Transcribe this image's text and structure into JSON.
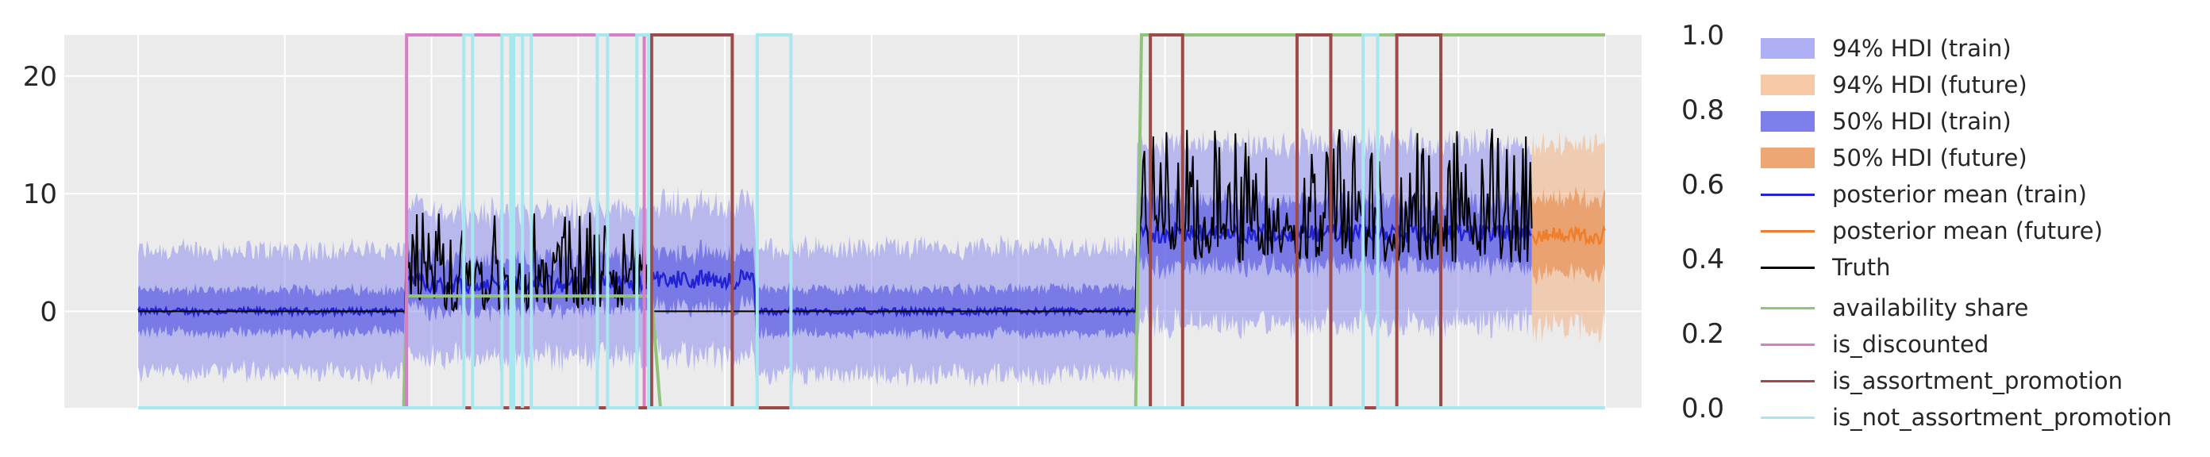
{
  "chart_data": {
    "type": "line",
    "x": {
      "start": 0,
      "end": 1000,
      "ticks_labelled": false
    },
    "y_left": {
      "lim": [
        -8.2,
        23.5
      ],
      "ticks": [
        0,
        10,
        20
      ],
      "tick_labels": [
        "0",
        "10",
        "20"
      ]
    },
    "y_right": {
      "lim": [
        0.0,
        1.0
      ],
      "ticks": [
        0.0,
        0.2,
        0.4,
        0.6,
        0.8,
        1.0
      ],
      "tick_labels": [
        "0.0",
        "0.2",
        "0.4",
        "0.6",
        "0.8",
        "1.0"
      ]
    },
    "grid": true,
    "legend_position": "outside-right",
    "background": "#ebebeb",
    "train_end": 950,
    "series": [
      {
        "name": "94% HDI (train)",
        "kind": "band",
        "color": "#7b7bf0",
        "opacity": 0.45
      },
      {
        "name": "94% HDI (future)",
        "kind": "band",
        "color": "#f2a46a",
        "opacity": 0.45
      },
      {
        "name": "50% HDI (train)",
        "kind": "band",
        "color": "#3b3be0",
        "opacity": 0.5
      },
      {
        "name": "50% HDI (future)",
        "kind": "band",
        "color": "#e8823a",
        "opacity": 0.55
      },
      {
        "name": "posterior mean (train)",
        "kind": "line",
        "color": "#2323d6"
      },
      {
        "name": "posterior mean (future)",
        "kind": "line",
        "color": "#f07d2a"
      },
      {
        "name": "Truth",
        "kind": "line",
        "color": "#000000"
      },
      {
        "name": "availability share",
        "kind": "line",
        "axis": "right",
        "color": "#8fc47a",
        "segments": [
          [
            0,
            0.0
          ],
          [
            181,
            0.0
          ],
          [
            183,
            0.3
          ],
          [
            350,
            0.3
          ],
          [
            356,
            0.0
          ],
          [
            680,
            0.0
          ],
          [
            684,
            1.0
          ],
          [
            1000,
            1.0
          ]
        ]
      },
      {
        "name": "is_discounted",
        "kind": "step",
        "axis": "right",
        "color": "#d67fc4",
        "on_intervals": [
          [
            183,
            345
          ]
        ]
      },
      {
        "name": "is_assortment_promotion",
        "kind": "step",
        "axis": "right",
        "color": "#9c4a4a",
        "on_intervals": [
          [
            350,
            405
          ],
          [
            690,
            712
          ],
          [
            790,
            813
          ],
          [
            858,
            888
          ]
        ]
      },
      {
        "name": "is_not_assortment_promotion",
        "kind": "step",
        "axis": "right",
        "color": "#a8e6f0",
        "on_intervals": [
          [
            222,
            228
          ],
          [
            248,
            254
          ],
          [
            256,
            262
          ],
          [
            262,
            268
          ],
          [
            313,
            320
          ],
          [
            340,
            348
          ],
          [
            422,
            445
          ],
          [
            835,
            845
          ]
        ]
      }
    ],
    "regimes": [
      {
        "x": [
          0,
          182
        ],
        "mean": 0.0,
        "band94": 5.2,
        "band50": 1.8,
        "truth": 0.0
      },
      {
        "x": [
          182,
          350
        ],
        "mean": 2.3,
        "band94": 6.2,
        "band50": 2.2,
        "truth": 2.5
      },
      {
        "x": [
          350,
          420
        ],
        "mean": 2.7,
        "band94": 6.4,
        "band50": 2.3,
        "truth": 0.0
      },
      {
        "x": [
          420,
          680
        ],
        "mean": 0.0,
        "band94": 5.4,
        "band50": 1.9,
        "truth": 0.0
      },
      {
        "x": [
          680,
          950
        ],
        "mean": 6.6,
        "band94": 7.6,
        "band50": 2.8,
        "truth": 6.6
      },
      {
        "x": [
          950,
          1000
        ],
        "mean": 6.5,
        "band94": 7.8,
        "band50": 3.2,
        "truth": null
      }
    ]
  }
}
